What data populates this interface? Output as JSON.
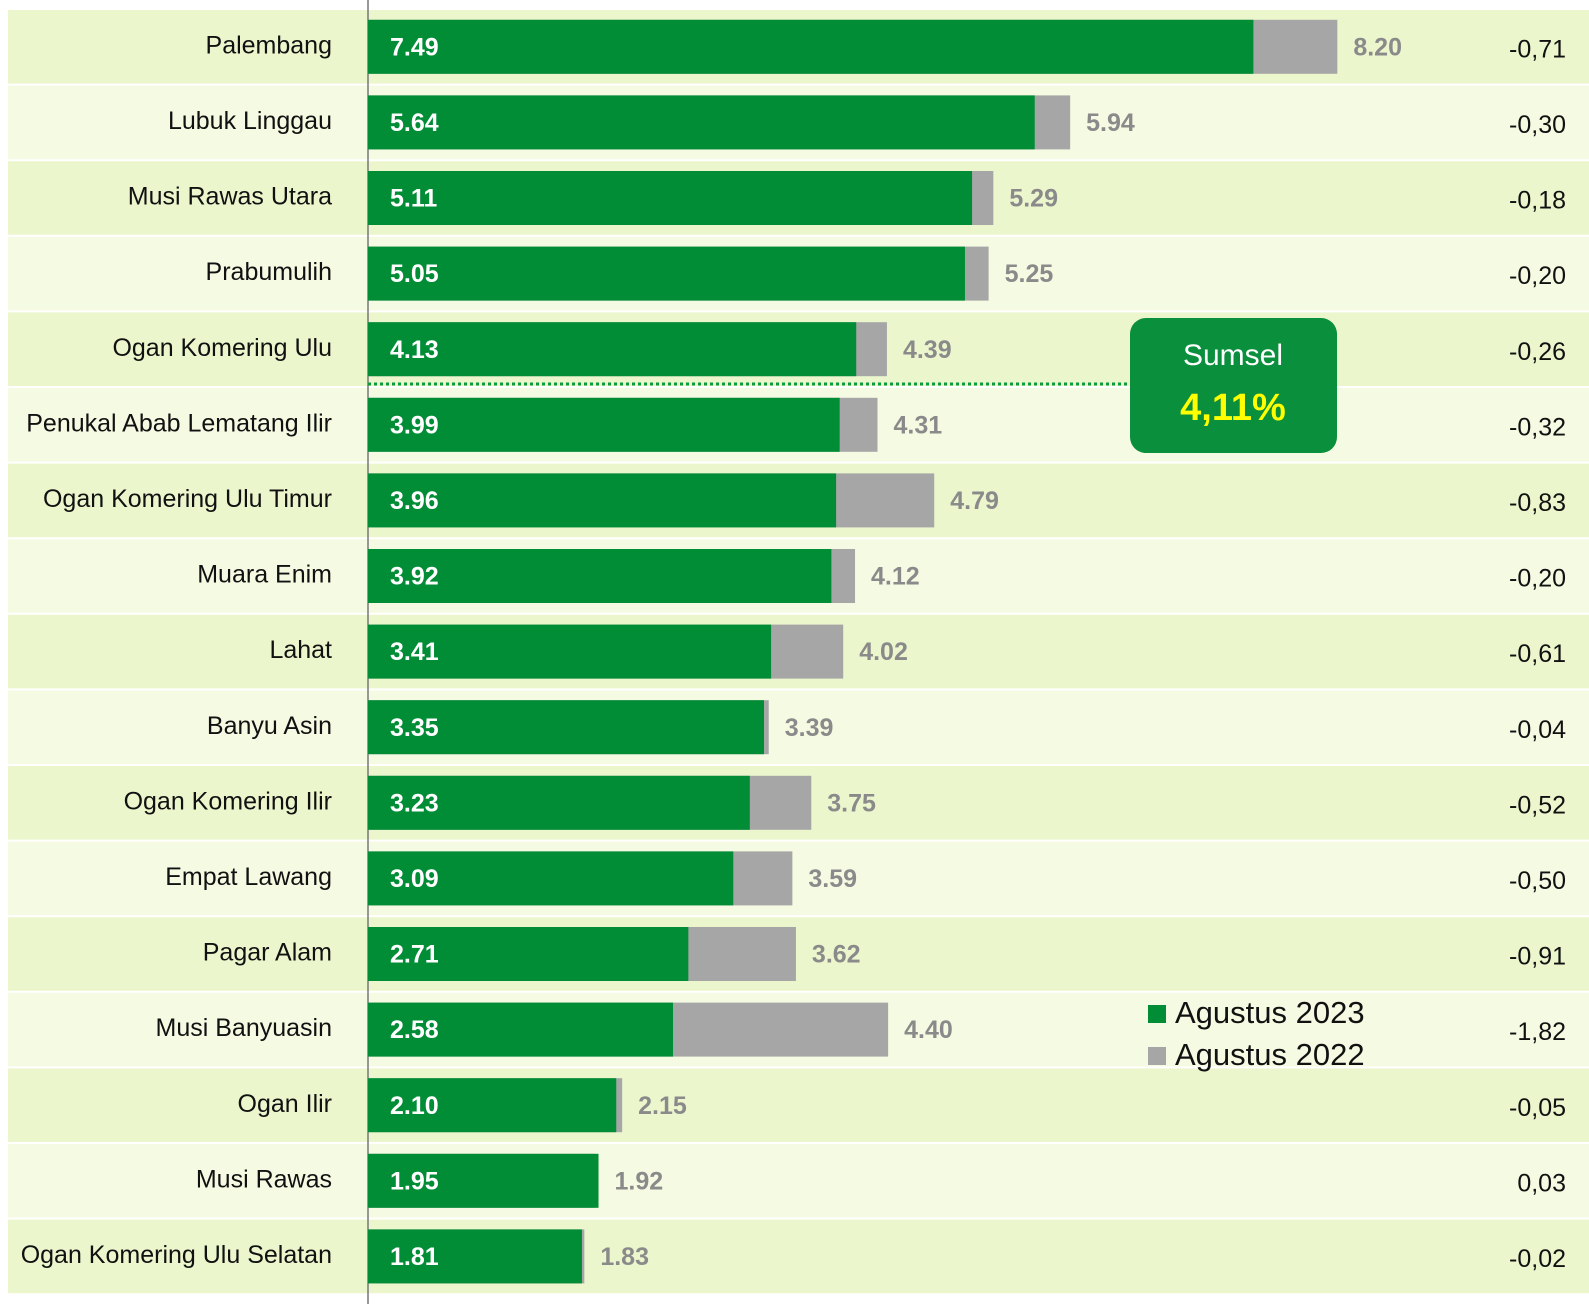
{
  "chart_data": {
    "type": "bar",
    "orientation": "horizontal",
    "categories": [
      "Palembang",
      "Lubuk Linggau",
      "Musi Rawas Utara",
      "Prabumulih",
      "Ogan Komering Ulu",
      "Penukal Abab Lematang Ilir",
      "Ogan Komering Ulu Timur",
      "Muara Enim",
      "Lahat",
      "Banyu Asin",
      "Ogan Komering Ilir",
      "Empat Lawang",
      "Pagar Alam",
      "Musi Banyuasin",
      "Ogan Ilir",
      "Musi Rawas",
      "Ogan Komering Ulu Selatan"
    ],
    "series": [
      {
        "name": "Agustus 2023",
        "color": "#008d36",
        "values": [
          7.49,
          5.64,
          5.11,
          5.05,
          4.13,
          3.99,
          3.96,
          3.92,
          3.41,
          3.35,
          3.23,
          3.09,
          2.71,
          2.58,
          2.1,
          1.95,
          1.81
        ],
        "value_labels": [
          "7.49",
          "5.64",
          "5.11",
          "5.05",
          "4.13",
          "3.99",
          "3.96",
          "3.92",
          "3.41",
          "3.35",
          "3.23",
          "3.09",
          "2.71",
          "2.58",
          "2.10",
          "1.95",
          "1.81"
        ]
      },
      {
        "name": "Agustus 2022",
        "color": "#a6a6a6",
        "values": [
          8.2,
          5.94,
          5.29,
          5.25,
          4.39,
          4.31,
          4.79,
          4.12,
          4.02,
          3.39,
          3.75,
          3.59,
          3.62,
          4.4,
          2.15,
          1.92,
          1.83
        ],
        "value_labels": [
          "8.20",
          "5.94",
          "5.29",
          "5.25",
          "4.39",
          "4.31",
          "4.79",
          "4.12",
          "4.02",
          "3.39",
          "3.75",
          "3.59",
          "3.62",
          "4.40",
          "2.15",
          "1.92",
          "1.83"
        ]
      }
    ],
    "changes": {
      "values": [
        -0.71,
        -0.3,
        -0.18,
        -0.2,
        -0.26,
        -0.32,
        -0.83,
        -0.2,
        -0.61,
        -0.04,
        -0.52,
        -0.5,
        -0.91,
        -1.82,
        -0.05,
        0.03,
        -0.02
      ],
      "value_labels": [
        "-0,71",
        "-0,30",
        "-0,18",
        "-0,20",
        "-0,26",
        "-0,32",
        "-0,83",
        "-0,20",
        "-0,61",
        "-0,04",
        "-0,52",
        "-0,50",
        "-0,91",
        "-1,82",
        "-0,05",
        "0,03",
        "-0,02"
      ]
    },
    "annotation": {
      "label": "Sumsel",
      "value": 4.11,
      "value_label": "4,11%"
    },
    "xlim": [
      0,
      9.5
    ]
  }
}
